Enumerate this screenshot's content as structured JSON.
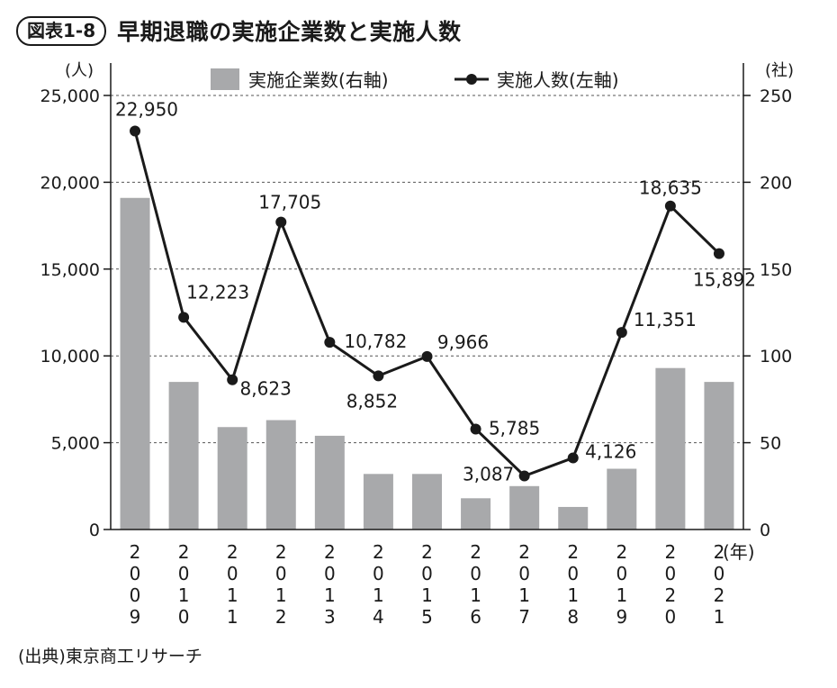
{
  "figure_label": "図表1-8",
  "title": "早期退職の実施企業数と実施人数",
  "source": "(出典)東京商工リサーチ",
  "chart_data": {
    "type": "bar+line",
    "categories": [
      "2009",
      "2010",
      "2011",
      "2012",
      "2013",
      "2014",
      "2015",
      "2016",
      "2017",
      "2018",
      "2019",
      "2020",
      "2021"
    ],
    "x_unit": "(年)",
    "bar_series": {
      "name": "実施企業数(右軸)",
      "axis": "right",
      "values": [
        191,
        85,
        59,
        63,
        54,
        32,
        32,
        18,
        25,
        13,
        35,
        93,
        85
      ],
      "color": "#a8a9ab"
    },
    "line_series": {
      "name": "実施人数(左軸)",
      "axis": "left",
      "values": [
        22950,
        12223,
        8623,
        17705,
        10782,
        8852,
        9966,
        5785,
        3087,
        4126,
        11351,
        18635,
        15892
      ],
      "labels": [
        "22,950",
        "12,223",
        "8,623",
        "17,705",
        "10,782",
        "8,852",
        "9,966",
        "5,785",
        "3,087",
        "4,126",
        "11,351",
        "18,635",
        "15,892"
      ],
      "color": "#1a1a1a"
    },
    "left_axis": {
      "unit": "(人)",
      "range": [
        0,
        25000
      ],
      "ticks": [
        0,
        5000,
        10000,
        15000,
        20000,
        25000
      ],
      "tick_labels": [
        "0",
        "5,000",
        "10,000",
        "15,000",
        "20,000",
        "25,000"
      ]
    },
    "right_axis": {
      "unit": "(社)",
      "range": [
        0,
        250
      ],
      "ticks": [
        0,
        50,
        100,
        150,
        200,
        250
      ],
      "tick_labels": [
        "0",
        "50",
        "100",
        "150",
        "200",
        "250"
      ]
    },
    "grid": "horizontal-dashed",
    "legend_position": "top-center"
  }
}
